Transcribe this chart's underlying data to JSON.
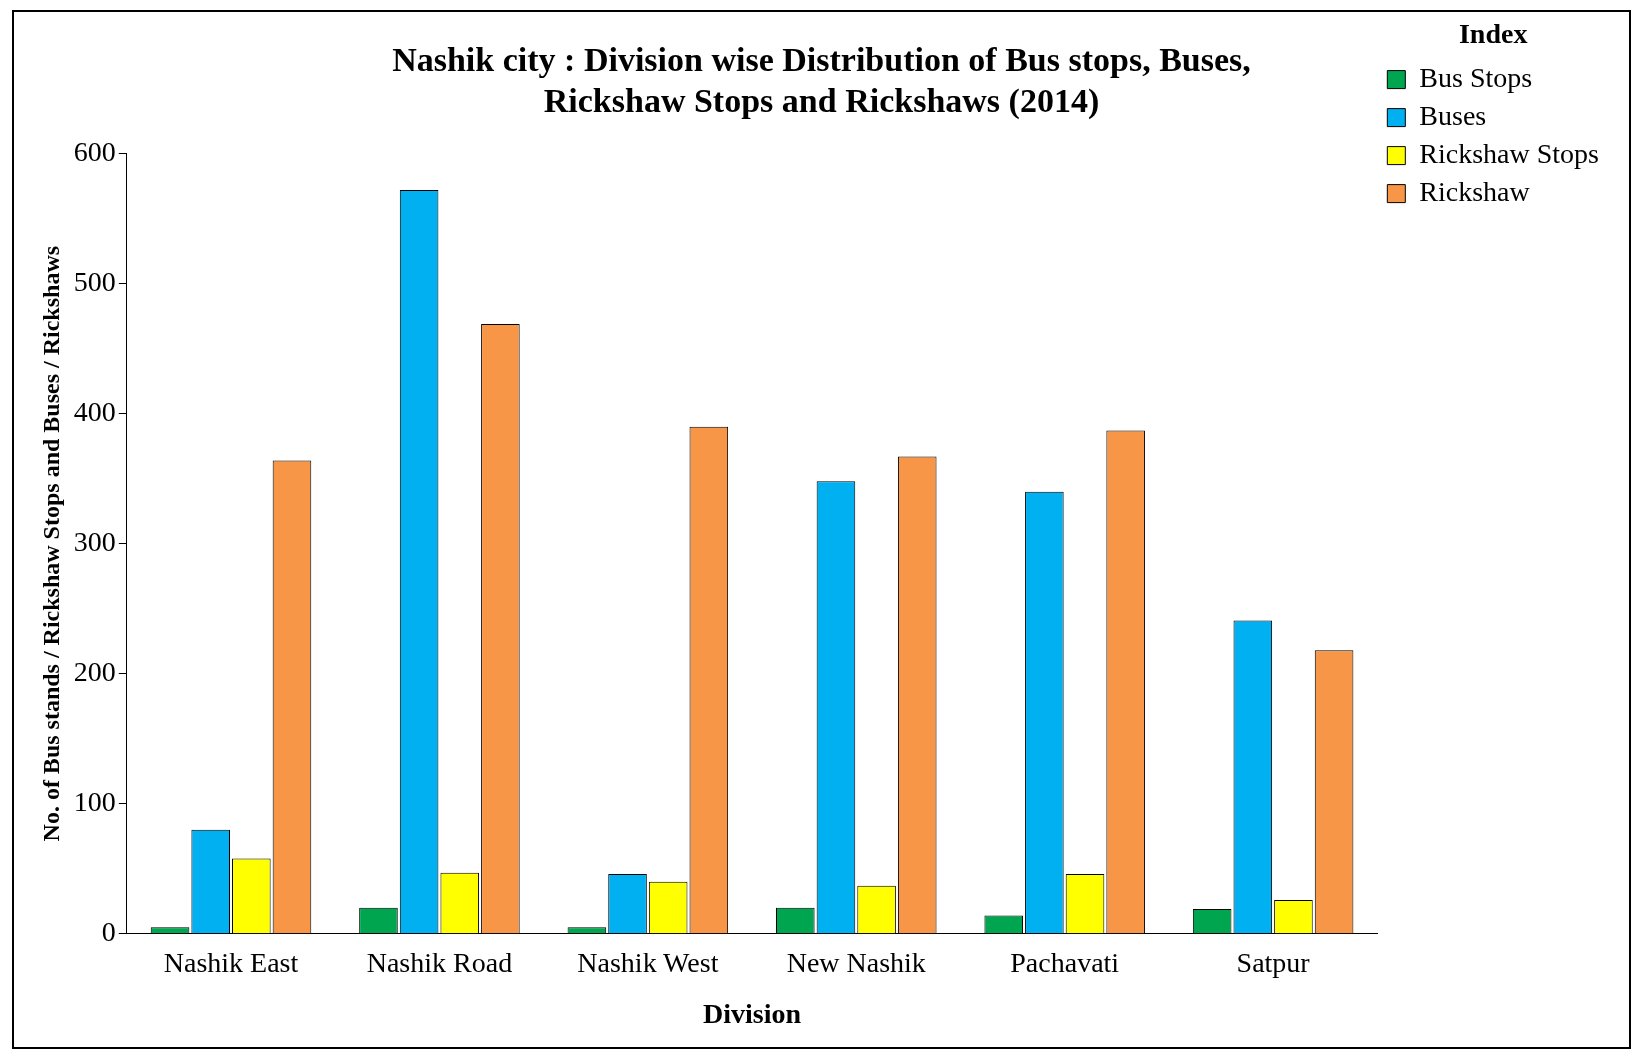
{
  "chart_data": {
    "type": "bar",
    "title": [
      "Nashik city : Division wise Distribution of Bus stops, Buses,",
      "Rickshaw Stops and Rickshaws (2014)"
    ],
    "xlabel": "Division",
    "ylabel": "No. of Bus stands / Rickshaw Stops and Buses / Rickshaws",
    "legend_title": "Index",
    "legend": "top right",
    "grid": false,
    "categories": [
      "Nashik East",
      "Nashik Road",
      "Nashik West",
      "New Nashik",
      "Pachavati",
      "Satpur"
    ],
    "ylim": [
      0,
      600
    ],
    "yticks": [
      0,
      100,
      200,
      300,
      400,
      500,
      600
    ],
    "series": [
      {
        "name": "Bus Stops",
        "color": "#00a550",
        "values": [
          5,
          20,
          5,
          20,
          14,
          19
        ]
      },
      {
        "name": "Buses",
        "color": "#00b0f0",
        "values": [
          80,
          572,
          46,
          348,
          340,
          241
        ]
      },
      {
        "name": "Rickshaw Stops",
        "color": "#ffff00",
        "values": [
          58,
          47,
          40,
          37,
          46,
          26
        ]
      },
      {
        "name": "Rickshaw",
        "color": "#f79646",
        "values": [
          364,
          469,
          390,
          367,
          387,
          218
        ]
      }
    ]
  }
}
